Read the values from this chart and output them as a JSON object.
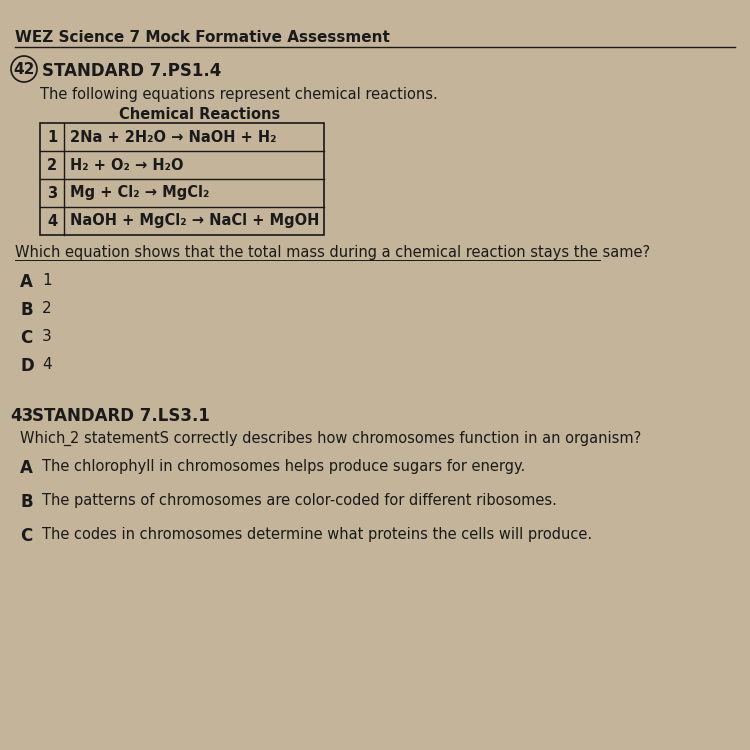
{
  "bg_color": "#c4b49a",
  "header_text": "WEZ Science 7 Mock Formative Assessment",
  "q42_number": "42",
  "q42_standard": "STANDARD 7.PS1.4",
  "q42_intro": "The following equations represent chemical reactions.",
  "table_title": "Chemical Reactions",
  "table_rows": [
    [
      "1",
      "2Na + 2H₂O → NaOH + H₂"
    ],
    [
      "2",
      "H₂ + O₂ → H₂O"
    ],
    [
      "3",
      "Mg + Cl₂ → MgCl₂"
    ],
    [
      "4",
      "NaOH + MgCl₂ → NaCl + MgOH"
    ]
  ],
  "q42_question": "Which equation shows that the total mass during a chemical reaction stays the same?",
  "q42_choices": [
    [
      "A",
      "1"
    ],
    [
      "B",
      "2"
    ],
    [
      "C",
      "3"
    ],
    [
      "D",
      "4"
    ]
  ],
  "q43_number": "43",
  "q43_standard": "STANDARD 7.LS3.1",
  "q43_question": "Which 2 statementS correctly describes how chromosomes function in an organism?",
  "q43_choices": [
    [
      "A",
      "The chlorophyll in chromosomes helps produce sugars for energy."
    ],
    [
      "B",
      "The patterns of chromosomes are color-coded for different ribosomes."
    ],
    [
      "C",
      "The codes in chromosomes determine what proteins the cells will produce."
    ]
  ]
}
